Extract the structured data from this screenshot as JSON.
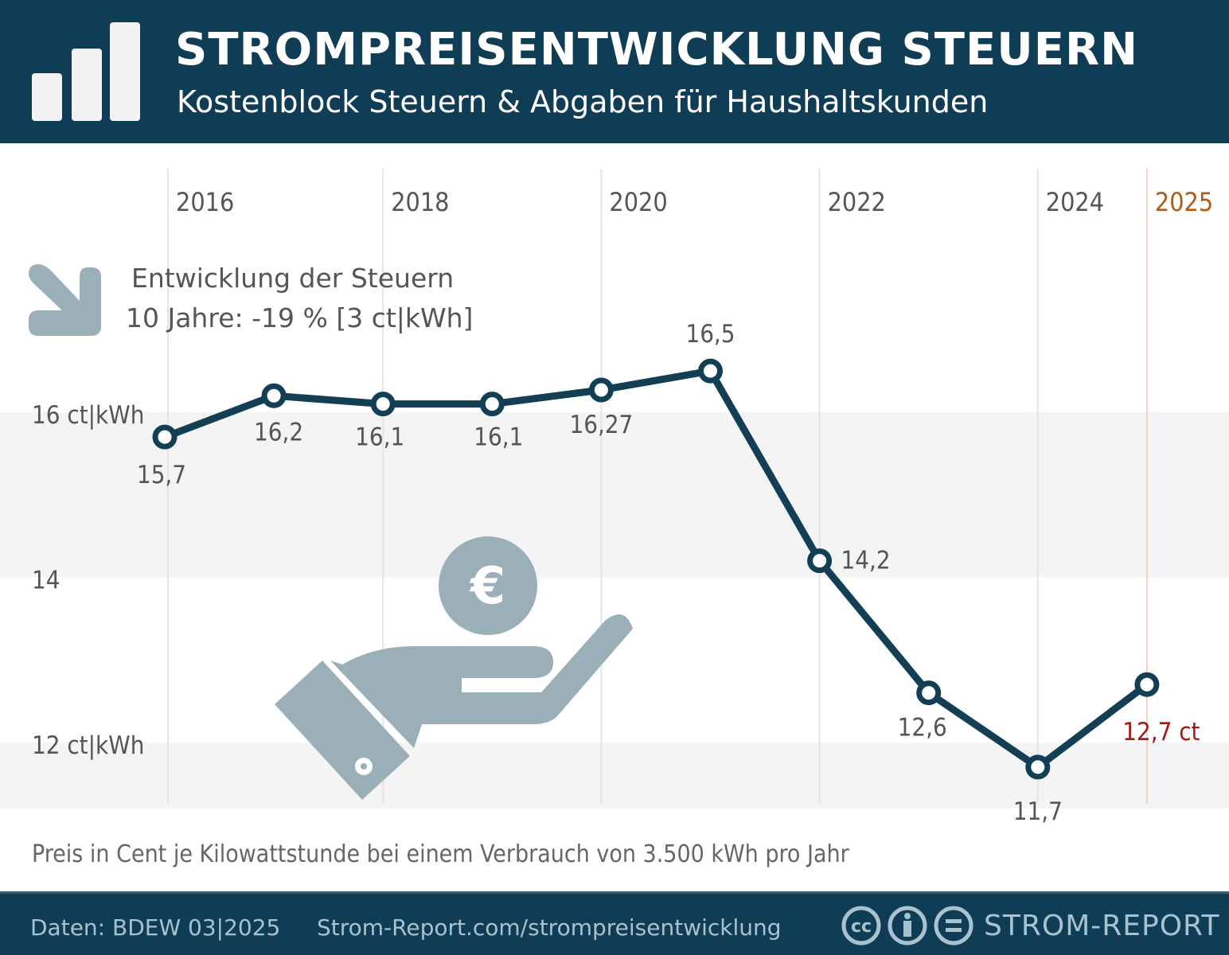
{
  "header": {
    "title": "STROMPREISENTWICKLUNG STEUERN",
    "subtitle": "Kostenblock Steuern & Abgaben für Haushaltskunden",
    "logo_icon": "bar-chart-icon"
  },
  "trend": {
    "icon": "arrow-down-right-icon",
    "line1": "Entwicklung der Steuern",
    "line2": "10 Jahre: -19 %  [3 ct|kWh]"
  },
  "chart_data": {
    "type": "line",
    "x": [
      "2016",
      "2017",
      "2018",
      "2019",
      "2020",
      "2021",
      "2022",
      "2023",
      "2024",
      "2025"
    ],
    "values": [
      15.7,
      16.2,
      16.1,
      16.1,
      16.27,
      16.5,
      14.2,
      12.6,
      11.7,
      12.7
    ],
    "data_labels": [
      "15,7",
      "16,2",
      "16,1",
      "16,1",
      "16,27",
      "16,5",
      "14,2",
      "12,6",
      "11,7",
      "12,7 ct"
    ],
    "x_tick_labels": [
      {
        "year": "2016",
        "label": "2016"
      },
      {
        "year": "2018",
        "label": "2018"
      },
      {
        "year": "2020",
        "label": "2020"
      },
      {
        "year": "2022",
        "label": "2022"
      },
      {
        "year": "2024",
        "label": "2024"
      },
      {
        "year": "2025",
        "label": "2025"
      }
    ],
    "y_tick_labels": [
      {
        "value": 16,
        "label": "16 ct|kWh"
      },
      {
        "value": 14,
        "label": "14"
      },
      {
        "value": 12,
        "label": "12 ct|kWh"
      }
    ],
    "ylim": [
      11.2,
      19
    ],
    "colors": {
      "line": "#133f55",
      "highlight": "#a31a10",
      "highlight_year": "#b35a12",
      "band": "#f4f4f4"
    }
  },
  "note": "Preis in Cent je Kilowattstunde bei einem Verbrauch von 3.500 kWh pro Jahr",
  "footer": {
    "source": "Daten: BDEW  03|2025",
    "url": "Strom-Report.com/strompreisentwicklung",
    "license_icons": [
      "cc-icon",
      "attribution-icon",
      "no-derivatives-icon"
    ],
    "brand": "STROM-REPORT"
  }
}
